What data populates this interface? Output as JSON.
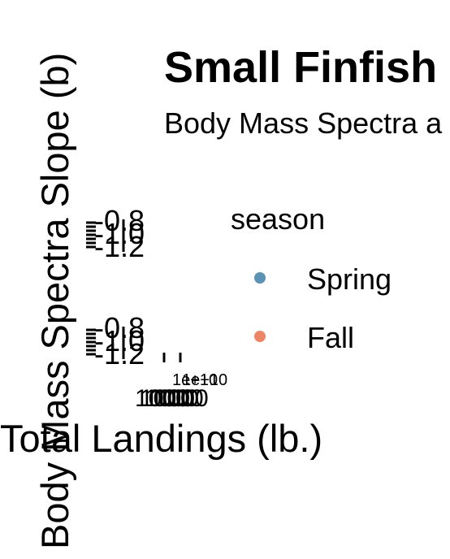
{
  "chart_data": {
    "type": "scatter",
    "title": "Small Finfish",
    "subtitle": "Body Mass Spectra a",
    "xlabel": "Total Landings (lb.)",
    "ylabel": "Body Mass Spectra Slope (b)",
    "panels": [
      {
        "y_tick_labels": [
          "-0.8",
          "-1.0",
          "-1.2"
        ],
        "x_tick_labels": []
      },
      {
        "y_tick_labels": [
          "-0.8",
          "-1.0",
          "-1.2"
        ],
        "x_tick_labels": [
          "1000",
          "1000",
          "1000",
          "1000",
          "1000"
        ],
        "x_tick_labels_small": [
          "1e+10",
          "1e+10"
        ]
      }
    ],
    "legend": {
      "title": "season",
      "placement": "right",
      "entries": [
        {
          "label": "Spring",
          "color": "#3F7FA6"
        },
        {
          "label": "Fall",
          "color": "#E8724B"
        }
      ]
    },
    "series": [
      {
        "name": "Spring",
        "color": "#3F7FA6",
        "points": []
      },
      {
        "name": "Fall",
        "color": "#E8724B",
        "points": []
      }
    ]
  }
}
